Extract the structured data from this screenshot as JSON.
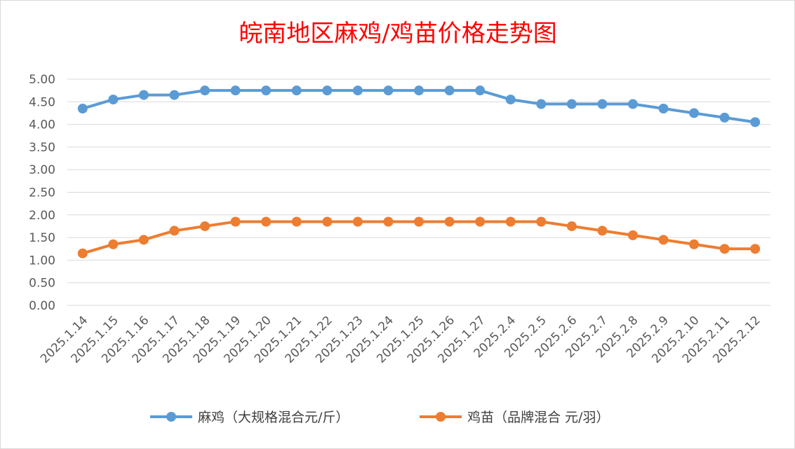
{
  "chart_data": {
    "type": "line",
    "title": "皖南地区麻鸡/鸡苗价格走势图",
    "xlabel": "",
    "ylabel": "",
    "ylim": [
      0,
      5
    ],
    "y_ticks": [
      "0.00",
      "0.50",
      "1.00",
      "1.50",
      "2.00",
      "2.50",
      "3.00",
      "3.50",
      "4.00",
      "4.50",
      "5.00"
    ],
    "grid": true,
    "legend_position": "bottom",
    "categories": [
      "2025.1.14",
      "2025.1.15",
      "2025.1.16",
      "2025.1.17",
      "2025.1.18",
      "2025.1.19",
      "2025.1.20",
      "2025.1.21",
      "2025.1.22",
      "2025.1.23",
      "2025.1.24",
      "2025.1.25",
      "2025.1.26",
      "2025.1.27",
      "2025.2.4",
      "2025.2.5",
      "2025.2.6",
      "2025.2.7",
      "2025.2.8",
      "2025.2.9",
      "2025.2.10",
      "2025.2.11",
      "2025.2.12"
    ],
    "series": [
      {
        "name": "麻鸡（大规格混合元/斤）",
        "color": "#5b9bd5",
        "values": [
          4.35,
          4.55,
          4.65,
          4.65,
          4.75,
          4.75,
          4.75,
          4.75,
          4.75,
          4.75,
          4.75,
          4.75,
          4.75,
          4.75,
          4.55,
          4.45,
          4.45,
          4.45,
          4.45,
          4.35,
          4.25,
          4.15,
          4.05
        ]
      },
      {
        "name": "鸡苗（品牌混合 元/羽）",
        "color": "#ed7d31",
        "values": [
          1.15,
          1.35,
          1.45,
          1.65,
          1.75,
          1.85,
          1.85,
          1.85,
          1.85,
          1.85,
          1.85,
          1.85,
          1.85,
          1.85,
          1.85,
          1.85,
          1.75,
          1.65,
          1.55,
          1.45,
          1.35,
          1.25,
          1.25
        ]
      }
    ],
    "title_color": "#ff0000",
    "grid_color": "#d9d9d9",
    "tick_color": "#595959"
  }
}
